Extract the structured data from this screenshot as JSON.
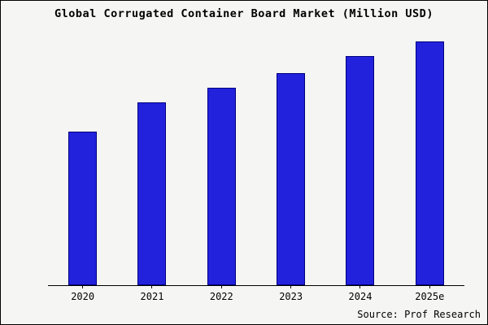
{
  "title": "Global Corrugated Container Board Market (Million USD)",
  "source": "Source: Prof Research",
  "colors": {
    "background": "#f5f5f3",
    "bar_fill": "#2222dd",
    "bar_border": "#000080",
    "axis": "#000000",
    "text": "#000000"
  },
  "chart_data": {
    "type": "bar",
    "title": "Global Corrugated Container Board Market (Million USD)",
    "categories": [
      "2020",
      "2021",
      "2022",
      "2023",
      "2024",
      "2025e"
    ],
    "values": [
      63,
      75,
      81,
      87,
      94,
      100
    ],
    "xlabel": "",
    "ylabel": "",
    "ylim": [
      0,
      100
    ],
    "grid": false,
    "legend_position": "none",
    "annotations": [
      "Source: Prof Research"
    ]
  }
}
